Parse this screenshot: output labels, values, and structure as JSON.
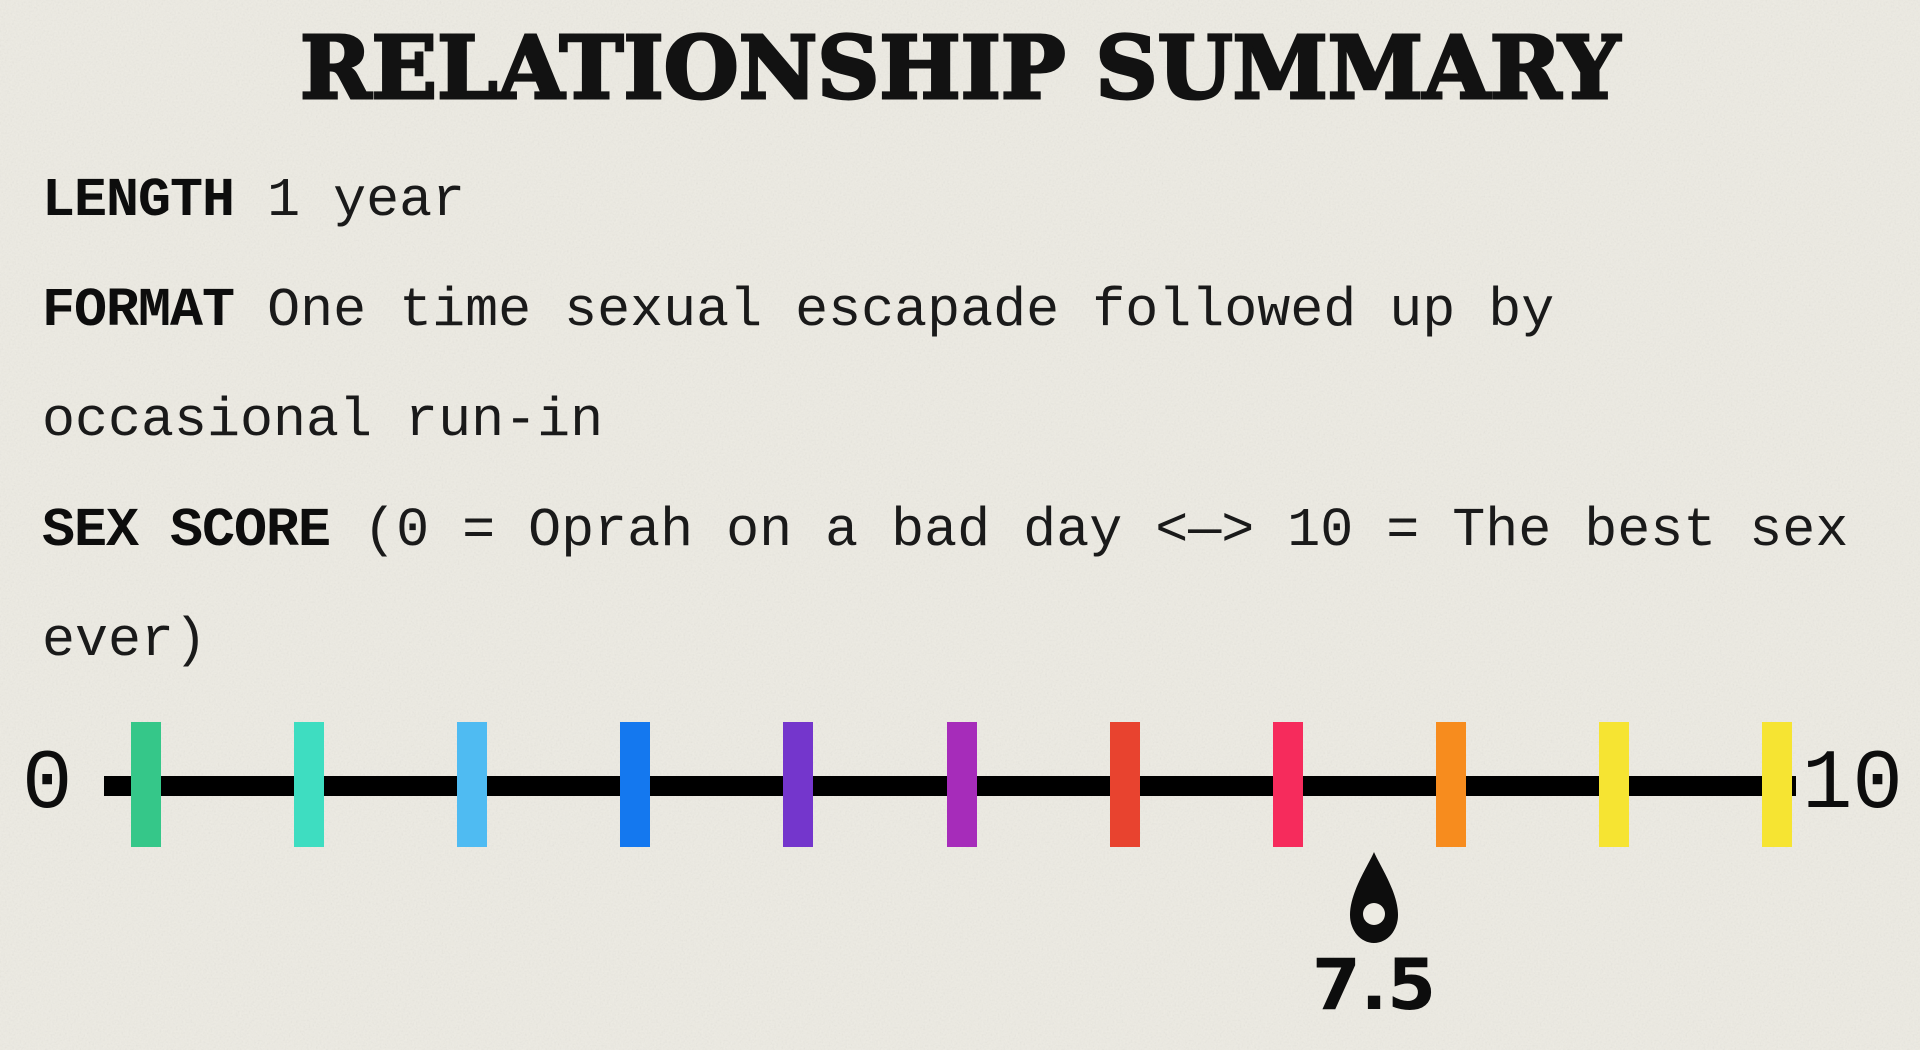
{
  "page": {
    "title": "RELATIONSHIP SUMMARY",
    "background_color": "#edebe3",
    "ink_color": "#121212"
  },
  "summary_fields": [
    {
      "label": "LENGTH",
      "value": "1 year"
    },
    {
      "label": "FORMAT",
      "value": "One time sexual escapade followed up by occasional run-in"
    },
    {
      "label": "SEX SCORE",
      "value": "(0 = Oprah on a bad day <—> 10 = The best sex ever)"
    }
  ],
  "chart_data": {
    "type": "scatter",
    "subtype": "number-line-score-scale",
    "title": "SEX SCORE",
    "axis_min_label": "0",
    "axis_max_label": "10",
    "axis_range": [
      0,
      10
    ],
    "points": [
      {
        "x": 7.5,
        "label": "7.5"
      }
    ],
    "marker_shape": "teardrop-pin",
    "scale_meaning_min": "Oprah on a bad day",
    "scale_meaning_max": "The best sex ever",
    "line_color": "#000000",
    "tick_colors": [
      "#35c789",
      "#3eddc1",
      "#4fbbf2",
      "#1478ef",
      "#7436cc",
      "#a62cba",
      "#e8432f",
      "#f62b5c",
      "#f78c1e",
      "#f6e432",
      "#f6e432"
    ]
  }
}
